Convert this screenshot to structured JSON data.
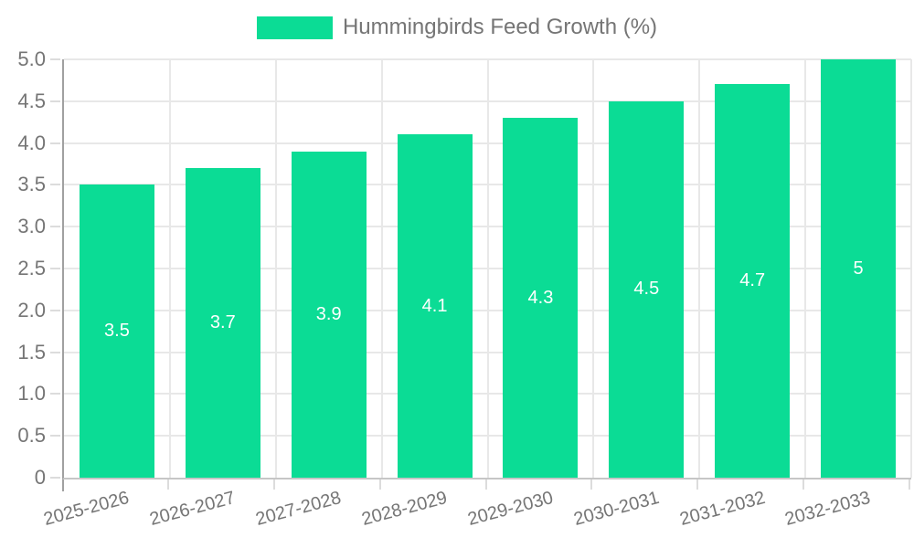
{
  "legend": {
    "label": "Hummingbirds Feed Growth (%)"
  },
  "chart_data": {
    "type": "bar",
    "title": "Hummingbirds Feed Growth (%)",
    "categories": [
      "2025-2026",
      "2026-2027",
      "2027-2028",
      "2028-2029",
      "2029-2030",
      "2030-2031",
      "2031-2032",
      "2032-2033"
    ],
    "values": [
      3.5,
      3.7,
      3.9,
      4.1,
      4.3,
      4.5,
      4.7,
      5
    ],
    "value_labels": [
      "3.5",
      "3.7",
      "3.9",
      "4.1",
      "4.3",
      "4.5",
      "4.7",
      "5"
    ],
    "xlabel": "",
    "ylabel": "",
    "ylim": [
      0,
      5
    ],
    "ytick_step": 0.5,
    "ytick_labels": [
      "0",
      "0.5",
      "1.0",
      "1.5",
      "2.0",
      "2.5",
      "3.0",
      "3.5",
      "4.0",
      "4.5",
      "5.0"
    ],
    "grid": true,
    "legend_position": "top-center",
    "x_label_rotation_deg": -15,
    "value_labels_position": "center-of-bar",
    "colors": {
      "bar": "#0bdc95",
      "value_label": "#ffffff",
      "axis_text": "#757575",
      "legend_text": "#757575",
      "gridline": "#e8e8e8",
      "tick": "#dcdcdc",
      "y_axis_line": "#a0a0a0",
      "x_axis_line": "#c6c6c6"
    }
  }
}
